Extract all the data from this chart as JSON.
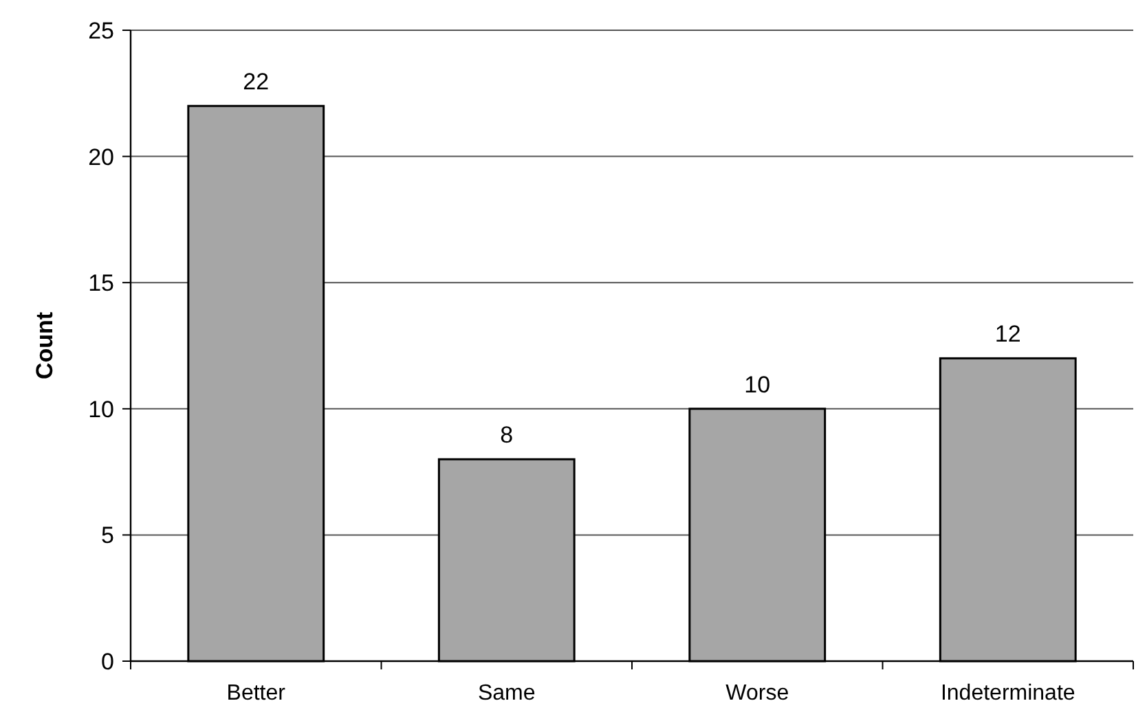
{
  "chart_data": {
    "type": "bar",
    "ylabel": "Count",
    "categories": [
      "Better",
      "Same",
      "Worse",
      "Indeterminate"
    ],
    "values": [
      22,
      8,
      10,
      12
    ],
    "color": "#a6a6a6",
    "ylim": [
      0,
      25
    ],
    "yticks": [
      0,
      5,
      10,
      15,
      20,
      25
    ],
    "grid": "y",
    "data_labels": true
  }
}
